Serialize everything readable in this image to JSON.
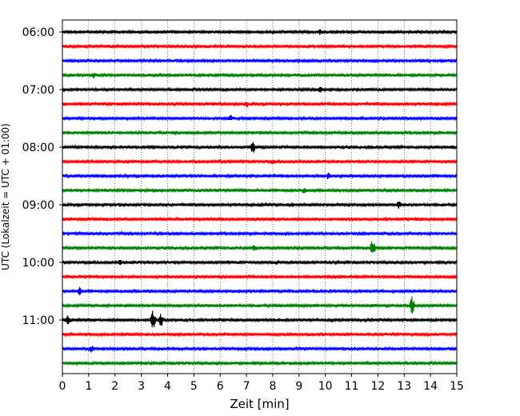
{
  "chart_data": {
    "type": "line",
    "title": "",
    "xlabel": "Zeit  [min]",
    "ylabel": "UTC (Lokalzeit = UTC + 01:00)",
    "xlim": [
      0,
      15
    ],
    "x_ticks": [
      "0",
      "1",
      "2",
      "3",
      "4",
      "5",
      "6",
      "7",
      "8",
      "9",
      "10",
      "11",
      "12",
      "13",
      "14",
      "15"
    ],
    "y_tick_labels": [
      "06:00",
      "07:00",
      "08:00",
      "09:00",
      "10:00",
      "11:00"
    ],
    "grid": "vertical dotted at each minute",
    "trace_interval_minutes": 15,
    "colors": [
      "#000000",
      "#ff0000",
      "#0000ff",
      "#008000"
    ],
    "traces": [
      {
        "start": "06:00",
        "color": "#000000",
        "events": [
          {
            "t": 9.8,
            "amp": 0.3
          }
        ]
      },
      {
        "start": "06:15",
        "color": "#ff0000",
        "events": []
      },
      {
        "start": "06:30",
        "color": "#0000ff",
        "events": []
      },
      {
        "start": "06:45",
        "color": "#008000",
        "events": [
          {
            "t": 1.2,
            "amp": 0.3
          }
        ]
      },
      {
        "start": "07:00",
        "color": "#000000",
        "events": [
          {
            "t": 9.8,
            "amp": 0.3
          }
        ]
      },
      {
        "start": "07:15",
        "color": "#ff0000",
        "events": [
          {
            "t": 7.0,
            "amp": 0.3
          }
        ]
      },
      {
        "start": "07:30",
        "color": "#0000ff",
        "events": [
          {
            "t": 6.4,
            "amp": 0.3
          }
        ]
      },
      {
        "start": "07:45",
        "color": "#008000",
        "events": []
      },
      {
        "start": "08:00",
        "color": "#000000",
        "events": [
          {
            "t": 7.25,
            "amp": 0.9
          }
        ]
      },
      {
        "start": "08:15",
        "color": "#ff0000",
        "events": [
          {
            "t": 8.0,
            "amp": 0.3
          }
        ]
      },
      {
        "start": "08:30",
        "color": "#0000ff",
        "events": [
          {
            "t": 10.1,
            "amp": 0.4
          }
        ]
      },
      {
        "start": "08:45",
        "color": "#008000",
        "events": [
          {
            "t": 9.2,
            "amp": 0.3
          }
        ]
      },
      {
        "start": "09:00",
        "color": "#000000",
        "events": [
          {
            "t": 12.8,
            "amp": 0.4
          }
        ]
      },
      {
        "start": "09:15",
        "color": "#ff0000",
        "events": []
      },
      {
        "start": "09:30",
        "color": "#0000ff",
        "events": []
      },
      {
        "start": "09:45",
        "color": "#008000",
        "events": [
          {
            "t": 7.3,
            "amp": 0.4
          },
          {
            "t": 11.8,
            "amp": 1.2
          }
        ]
      },
      {
        "start": "10:00",
        "color": "#000000",
        "events": [
          {
            "t": 2.2,
            "amp": 0.3
          }
        ]
      },
      {
        "start": "10:15",
        "color": "#ff0000",
        "events": []
      },
      {
        "start": "10:30",
        "color": "#0000ff",
        "events": [
          {
            "t": 0.65,
            "amp": 0.5
          }
        ]
      },
      {
        "start": "10:45",
        "color": "#008000",
        "events": [
          {
            "t": 13.3,
            "amp": 1.2
          }
        ]
      },
      {
        "start": "11:00",
        "color": "#000000",
        "events": [
          {
            "t": 0.2,
            "amp": 0.6
          },
          {
            "t": 3.45,
            "amp": 1.4
          },
          {
            "t": 3.75,
            "amp": 1.0
          }
        ]
      },
      {
        "start": "11:15",
        "color": "#ff0000",
        "events": []
      },
      {
        "start": "11:30",
        "color": "#0000ff",
        "events": [
          {
            "t": 1.1,
            "amp": 0.4
          }
        ]
      },
      {
        "start": "11:45",
        "color": "#008000",
        "events": []
      }
    ]
  }
}
